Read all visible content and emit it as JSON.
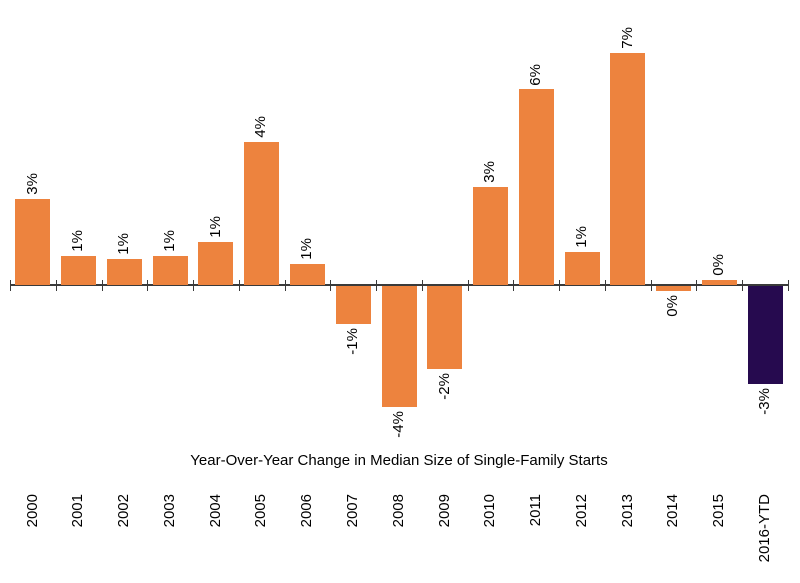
{
  "chart_data": {
    "type": "bar",
    "title": "Year-Over-Year Change in Median Size of Single-Family Starts",
    "categories": [
      "2000",
      "2001",
      "2002",
      "2003",
      "2004",
      "2005",
      "2006",
      "2007",
      "2008",
      "2009",
      "2010",
      "2011",
      "2012",
      "2013",
      "2014",
      "2015",
      "2016-YTD"
    ],
    "values": [
      2.6,
      0.88,
      0.79,
      0.88,
      1.3,
      4.32,
      0.64,
      -1.15,
      -3.66,
      -2.5,
      2.96,
      5.9,
      1.0,
      7.0,
      -0.15,
      0.15,
      -2.96
    ],
    "data_labels": [
      "3%",
      "1%",
      "1%",
      "1%",
      "1%",
      "4%",
      "1%",
      "-1%",
      "-4%",
      "-2%",
      "3%",
      "6%",
      "1%",
      "7%",
      "0%",
      "0%",
      "-3%"
    ],
    "xlabel": "",
    "ylabel": "",
    "ylim": [
      -4.5,
      7.5
    ],
    "grid": false,
    "legend": false,
    "data_label_rotation_deg": -90,
    "category_label_rotation_deg": -90,
    "highlight_index": 16,
    "colors": {
      "bar_default": "#ED833E",
      "bar_highlight": "#260A4F",
      "axis_line": "#3A3A3A",
      "label_text": "#000000"
    }
  }
}
